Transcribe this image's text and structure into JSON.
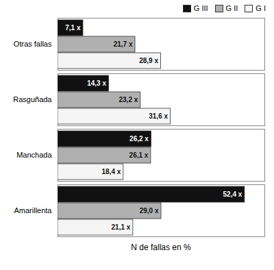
{
  "chart_data": {
    "type": "bar",
    "orientation": "horizontal",
    "categories": [
      "Otras fallas",
      "Rasguñada",
      "Manchada",
      "Amarillenta"
    ],
    "series": [
      {
        "name": "G III",
        "color": "#111111",
        "values": [
          7.1,
          14.3,
          26.2,
          52.4
        ],
        "value_labels": [
          "7,1 x",
          "14,3 x",
          "26,2 x",
          "52,4 x"
        ]
      },
      {
        "name": "G II",
        "color": "#b0b0b0",
        "values": [
          21.7,
          23.2,
          26.1,
          29.0
        ],
        "value_labels": [
          "21,7 x",
          "23,2 x",
          "26,1 x",
          "29,0 x"
        ]
      },
      {
        "name": "G I",
        "color": "#f5f5f5",
        "values": [
          28.9,
          31.6,
          18.4,
          21.1
        ],
        "value_labels": [
          "28,9 x",
          "31,6 x",
          "18,4 x",
          "21,1 x"
        ]
      }
    ],
    "xlim": [
      0,
      58
    ],
    "xlabel": "N de fallas en %",
    "tick_labels": "y",
    "data_labels": true,
    "legend": "upper right",
    "grid": false
  }
}
